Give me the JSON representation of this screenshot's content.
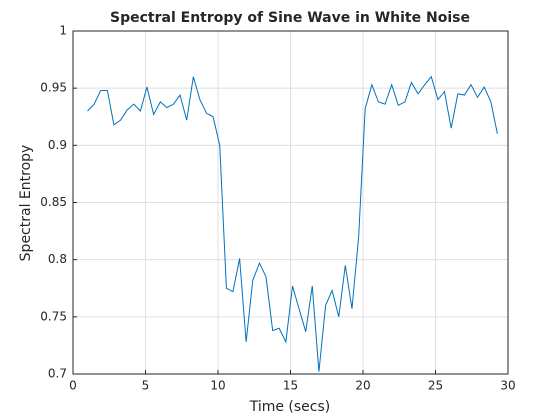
{
  "chart_data": {
    "type": "line",
    "title": "Spectral Entropy of Sine Wave in White Noise",
    "x_label": "Time (secs)",
    "y_label": "Spectral Entropy",
    "x": [
      1.0,
      1.46,
      1.91,
      2.37,
      2.82,
      3.28,
      3.74,
      4.19,
      4.65,
      5.1,
      5.56,
      6.02,
      6.47,
      6.93,
      7.38,
      7.84,
      8.3,
      8.75,
      9.21,
      9.66,
      10.12,
      10.58,
      11.03,
      11.49,
      11.94,
      12.4,
      12.86,
      13.31,
      13.77,
      14.22,
      14.68,
      15.14,
      15.59,
      16.05,
      16.5,
      16.96,
      17.42,
      17.87,
      18.33,
      18.78,
      19.24,
      19.7,
      20.15,
      20.61,
      21.06,
      21.52,
      21.98,
      22.43,
      22.89,
      23.34,
      23.8,
      24.26,
      24.71,
      25.17,
      25.62,
      26.08,
      26.54,
      26.99,
      27.45,
      27.9,
      28.36,
      28.82,
      29.27
    ],
    "series": [
      {
        "name": "Spectral Entropy",
        "color": "#0072bd",
        "values": [
          0.93,
          0.936,
          0.948,
          0.948,
          0.918,
          0.922,
          0.931,
          0.936,
          0.93,
          0.951,
          0.927,
          0.938,
          0.933,
          0.936,
          0.944,
          0.922,
          0.96,
          0.94,
          0.928,
          0.925,
          0.9,
          0.775,
          0.772,
          0.801,
          0.728,
          0.782,
          0.797,
          0.785,
          0.738,
          0.74,
          0.728,
          0.777,
          0.757,
          0.737,
          0.777,
          0.702,
          0.76,
          0.773,
          0.75,
          0.795,
          0.757,
          0.82,
          0.932,
          0.953,
          0.938,
          0.936,
          0.953,
          0.935,
          0.938,
          0.955,
          0.945,
          0.953,
          0.96,
          0.94,
          0.947,
          0.915,
          0.945,
          0.944,
          0.953,
          0.942,
          0.951,
          0.938,
          0.91
        ]
      }
    ],
    "xlim": [
      0,
      30
    ],
    "xticks": [
      0,
      5,
      10,
      15,
      20,
      25,
      30
    ],
    "ylim": [
      0.7,
      1
    ],
    "yticks": [
      0.7,
      0.75,
      0.8,
      0.85,
      0.9,
      0.95,
      1
    ],
    "grid": true
  }
}
